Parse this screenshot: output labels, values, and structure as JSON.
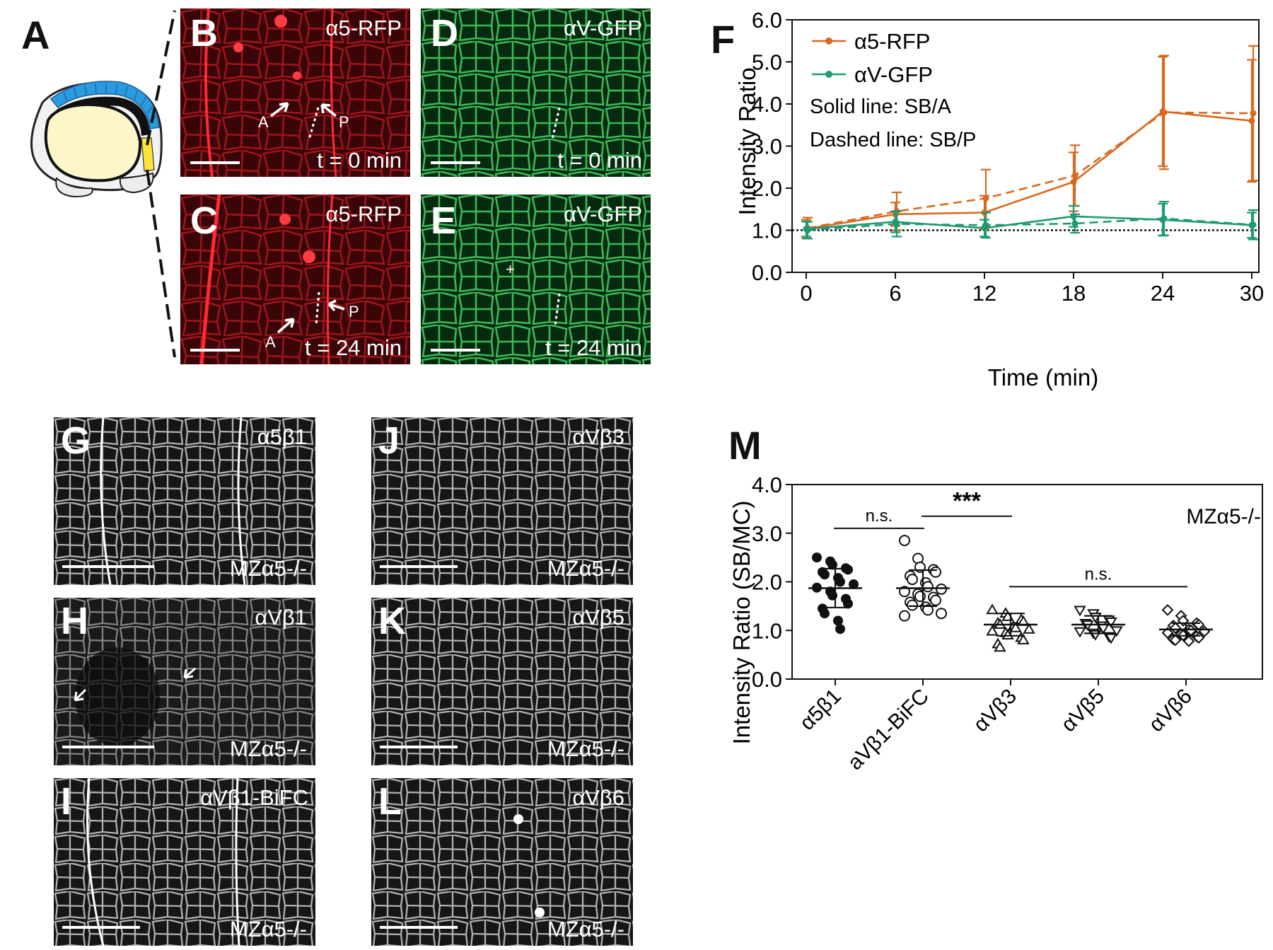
{
  "panel_letters": {
    "A": "A",
    "B": "B",
    "C": "C",
    "D": "D",
    "E": "E",
    "F": "F",
    "G": "G",
    "H": "H",
    "I": "I",
    "J": "J",
    "K": "K",
    "L": "L",
    "M": "M"
  },
  "micrographs": {
    "B": {
      "channel": "α5-RFP",
      "time": "t = 0 min",
      "arrow_a": "A",
      "arrow_p": "P",
      "color": "#d81f26"
    },
    "C": {
      "channel": "α5-RFP",
      "time": "t = 24 min",
      "arrow_a": "A",
      "arrow_p": "P",
      "color": "#d81f26"
    },
    "D": {
      "channel": "αV-GFP",
      "time": "t = 0 min",
      "color": "#2fb84a"
    },
    "E": {
      "channel": "αV-GFP",
      "time": "t = 24 min",
      "mark": "+",
      "color": "#2fb84a"
    },
    "G": {
      "label": "α5β1",
      "genotype": "MZα5-/-"
    },
    "H": {
      "label": "αVβ1",
      "genotype": "MZα5-/-"
    },
    "I": {
      "label": "αVβ1-BiFC",
      "genotype": "MZα5-/-"
    },
    "J": {
      "label": "αVβ3",
      "genotype": "MZα5-/-"
    },
    "K": {
      "label": "αVβ5",
      "genotype": "MZα5-/-"
    },
    "L": {
      "label": "αVβ6",
      "genotype": "MZα5-/-"
    }
  },
  "chart_data": [
    {
      "panel": "F",
      "type": "line",
      "xlabel": "Time (min)",
      "ylabel": "Intensity Ratio",
      "x": [
        0,
        6,
        12,
        18,
        24,
        30
      ],
      "xticks": [
        "0",
        "6",
        "12",
        "18",
        "24",
        "30"
      ],
      "yticks": [
        "0.0",
        "1.0",
        "2.0",
        "3.0",
        "4.0",
        "5.0",
        "6.0"
      ],
      "ylim": [
        0,
        6
      ],
      "xlim": [
        0,
        30
      ],
      "reference_line": 1.0,
      "legend": [
        "α5-RFP",
        "αV-GFP"
      ],
      "notes": [
        "Solid line: SB/A",
        "Dashed line: SB/P"
      ],
      "series": [
        {
          "name": "α5-RFP",
          "style": "solid",
          "color": "#d8691e",
          "values": [
            1.03,
            1.38,
            1.42,
            2.15,
            3.82,
            3.6
          ],
          "err": [
            0.22,
            0.28,
            0.4,
            0.7,
            1.3,
            1.45
          ]
        },
        {
          "name": "α5-RFP",
          "style": "dashed",
          "color": "#d8691e",
          "values": [
            1.05,
            1.45,
            1.76,
            2.3,
            3.8,
            3.78
          ],
          "err": [
            0.25,
            0.45,
            0.68,
            0.72,
            1.35,
            1.6
          ]
        },
        {
          "name": "αV-GFP",
          "style": "solid",
          "color": "#1e9a72",
          "values": [
            1.03,
            1.2,
            1.05,
            1.33,
            1.25,
            1.12
          ],
          "err": [
            0.18,
            0.25,
            0.2,
            0.25,
            0.38,
            0.3
          ]
        },
        {
          "name": "αV-GFP",
          "style": "dashed",
          "color": "#1e9a72",
          "values": [
            1.0,
            1.15,
            1.12,
            1.16,
            1.28,
            1.13
          ],
          "err": [
            0.2,
            0.3,
            0.3,
            0.22,
            0.4,
            0.35
          ]
        }
      ]
    },
    {
      "panel": "M",
      "type": "scatter",
      "ylabel": "Intensity Ratio (SB/MC)",
      "categories": [
        "α5β1",
        "aVβ1-BiFC",
        "αVβ3",
        "αVβ5",
        "αVβ6"
      ],
      "yticks": [
        "0.0",
        "1.0",
        "2.0",
        "3.0",
        "4.0"
      ],
      "ylim": [
        0,
        4
      ],
      "genotype": "MZα5-/-",
      "markers": [
        "filled-circle",
        "open-circle",
        "open-triangle-up",
        "open-triangle-down",
        "open-diamond"
      ],
      "means": [
        1.87,
        1.87,
        1.12,
        1.12,
        1.02
      ],
      "sd": [
        0.4,
        0.37,
        0.23,
        0.18,
        0.13
      ],
      "points": [
        [
          2.5,
          2.42,
          2.35,
          2.28,
          2.25,
          2.2,
          2.15,
          2.08,
          2.0,
          1.95,
          1.88,
          1.8,
          1.72,
          1.65,
          1.55,
          1.45,
          1.35,
          1.2,
          1.03
        ],
        [
          2.85,
          2.48,
          2.3,
          2.25,
          2.2,
          2.12,
          2.05,
          1.98,
          1.9,
          1.85,
          1.8,
          1.75,
          1.7,
          1.68,
          1.62,
          1.58,
          1.52,
          1.48,
          1.42,
          1.35,
          1.3
        ],
        [
          1.42,
          1.35,
          1.28,
          1.22,
          1.18,
          1.15,
          1.12,
          1.08,
          1.05,
          1.02,
          0.98,
          0.95,
          0.9,
          0.85,
          0.8,
          0.72,
          0.65
        ],
        [
          1.42,
          1.35,
          1.28,
          1.22,
          1.18,
          1.15,
          1.12,
          1.1,
          1.05,
          1.0,
          0.98,
          0.95,
          0.92,
          0.88,
          0.85
        ],
        [
          1.42,
          1.3,
          1.2,
          1.15,
          1.12,
          1.1,
          1.05,
          1.02,
          1.0,
          0.98,
          0.95,
          0.92,
          0.9,
          0.88,
          0.85,
          0.82,
          0.8,
          0.78
        ]
      ],
      "significance": [
        {
          "label": "n.s.",
          "from": 0,
          "to": 1,
          "y": 3.1
        },
        {
          "label": "***",
          "from": 1,
          "to": 2,
          "y": 3.35
        },
        {
          "label": "n.s.",
          "from": 2,
          "to": 4,
          "y": 1.9
        }
      ]
    }
  ]
}
